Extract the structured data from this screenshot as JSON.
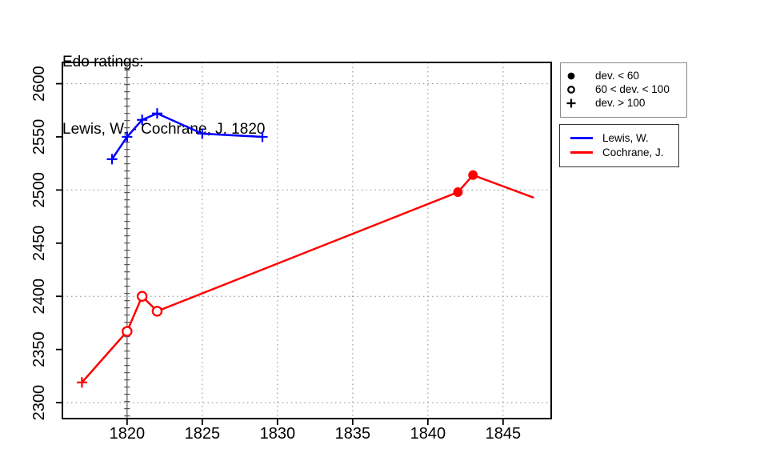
{
  "title": {
    "line1": "Edo ratings:",
    "line2": "Lewis, W. - Cochrane, J. 1820"
  },
  "chart_data": {
    "type": "line",
    "title": "Edo ratings: Lewis, W. - Cochrane, J. 1820",
    "xlabel": "",
    "ylabel": "",
    "xlim": [
      1815.7,
      1848.2
    ],
    "ylim": [
      2285,
      2620
    ],
    "x_ticks": [
      "1820",
      "1825",
      "1830",
      "1835",
      "1840",
      "1845"
    ],
    "x_tick_values": [
      1820,
      1825,
      1830,
      1835,
      1840,
      1845
    ],
    "y_ticks": [
      "2300",
      "2350",
      "2400",
      "2450",
      "2500",
      "2550",
      "2600"
    ],
    "y_tick_values": [
      2300,
      2350,
      2400,
      2450,
      2500,
      2550,
      2600
    ],
    "x_gridlines": [
      1825,
      1830,
      1835,
      1840,
      1845
    ],
    "y_gridlines": [
      2300,
      2400,
      2500,
      2600
    ],
    "reference_vline": 1820,
    "grid": true,
    "legend_position": "outside-right",
    "marker_key": {
      "filled": "dev. < 60",
      "open": "60 < dev. < 100",
      "plus": "dev. > 100"
    },
    "series": [
      {
        "name": "Lewis, W.",
        "color": "#0000FF",
        "x": [
          1819,
          1820,
          1821,
          1822,
          1825,
          1829
        ],
        "y": [
          2529,
          2550,
          2566,
          2572,
          2553,
          2550
        ],
        "markers": [
          "plus",
          "plus",
          "plus",
          "plus",
          "plus",
          "plus"
        ]
      },
      {
        "name": "Cochrane, J.",
        "color": "#FF0000",
        "x": [
          1817,
          1820,
          1821,
          1822,
          1842,
          1843,
          1847
        ],
        "y": [
          2319,
          2367,
          2400,
          2386,
          2498,
          2514,
          2493
        ],
        "markers": [
          "plus",
          "open",
          "open",
          "open",
          "filled",
          "filled",
          "none"
        ]
      }
    ]
  },
  "legend_dev": {
    "items": [
      {
        "symbol": "filled-circle",
        "label": "dev. < 60"
      },
      {
        "symbol": "open-circle",
        "label": "60 < dev. < 100"
      },
      {
        "symbol": "plus",
        "label": "dev. > 100"
      }
    ]
  },
  "legend_series": {
    "items": [
      {
        "label": "Lewis, W.",
        "color": "#0000FF"
      },
      {
        "label": "Cochrane, J.",
        "color": "#FF0000"
      }
    ]
  }
}
